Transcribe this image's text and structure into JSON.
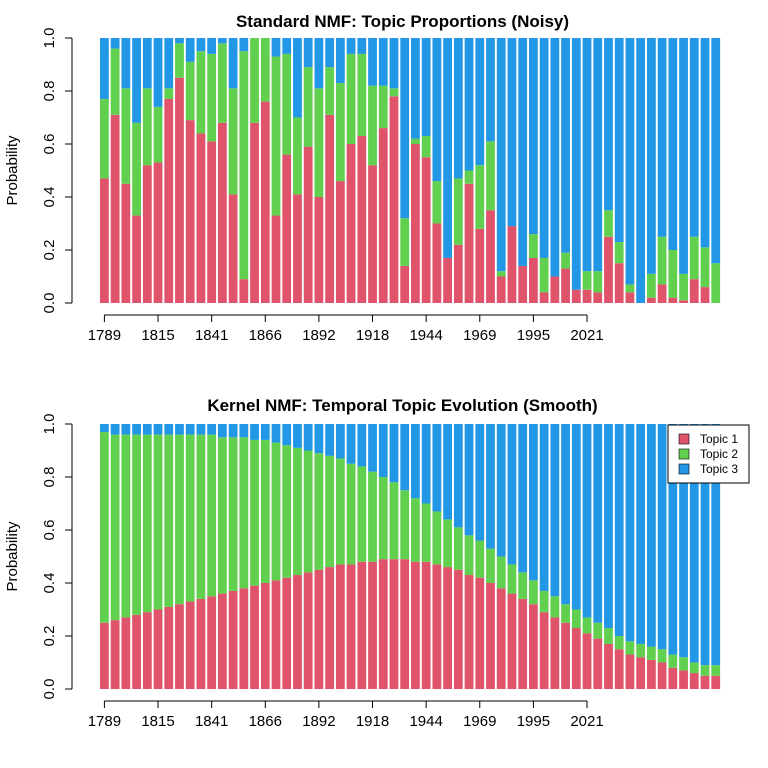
{
  "chart_data": [
    {
      "type": "bar",
      "stacked": true,
      "title": "Standard NMF: Topic Proportions (Noisy)",
      "ylabel": "Probability",
      "ylim": [
        0,
        1
      ],
      "yticks": [
        "0.0",
        "0.2",
        "0.4",
        "0.6",
        "0.8",
        "1.0"
      ],
      "xtick_labels": [
        "1789",
        "1815",
        "1841",
        "1866",
        "1892",
        "1918",
        "1944",
        "1969",
        "1995",
        "2021"
      ],
      "xtick_bar_index": [
        0,
        5,
        10,
        15,
        20,
        25,
        30,
        35,
        40,
        45
      ],
      "colors": [
        "#DF536B",
        "#61D04F",
        "#2297E6"
      ],
      "series": [
        {
          "values": [
            0.47,
            0.71,
            0.45,
            0.33,
            0.52,
            0.53,
            0.77,
            0.85,
            0.69,
            0.64,
            0.61,
            0.68,
            0.41,
            0.09,
            0.68,
            0.76,
            0.33,
            0.56,
            0.41,
            0.59,
            0.4,
            0.71,
            0.46,
            0.6,
            0.63,
            0.52,
            0.66,
            0.78,
            0.14,
            0.6,
            0.55,
            0.3,
            0.17,
            0.22,
            0.45,
            0.28,
            0.35,
            0.1,
            0.29,
            0.14,
            0.17,
            0.04,
            0.1,
            0.13,
            0.05,
            0.05,
            0.04,
            0.25,
            0.15,
            0.04,
            0.0,
            0.02,
            0.07,
            0.02,
            0.01,
            0.09,
            0.06,
            0.0
          ]
        },
        {
          "values": [
            0.3,
            0.25,
            0.36,
            0.35,
            0.29,
            0.21,
            0.04,
            0.13,
            0.22,
            0.31,
            0.33,
            0.3,
            0.4,
            0.86,
            0.32,
            0.24,
            0.6,
            0.38,
            0.29,
            0.3,
            0.41,
            0.18,
            0.37,
            0.34,
            0.31,
            0.3,
            0.16,
            0.03,
            0.18,
            0.02,
            0.08,
            0.16,
            0.0,
            0.25,
            0.05,
            0.24,
            0.26,
            0.02,
            0.0,
            0.0,
            0.09,
            0.13,
            0.0,
            0.06,
            0.0,
            0.07,
            0.08,
            0.1,
            0.08,
            0.03,
            0.0,
            0.09,
            0.18,
            0.18,
            0.1,
            0.16,
            0.15,
            0.15
          ]
        },
        {
          "values": [
            0.23,
            0.04,
            0.19,
            0.32,
            0.19,
            0.26,
            0.19,
            0.02,
            0.09,
            0.05,
            0.06,
            0.02,
            0.19,
            0.05,
            0.0,
            0.0,
            0.07,
            0.06,
            0.3,
            0.11,
            0.19,
            0.11,
            0.17,
            0.06,
            0.06,
            0.18,
            0.18,
            0.19,
            0.68,
            0.38,
            0.37,
            0.54,
            0.83,
            0.53,
            0.5,
            0.48,
            0.39,
            0.88,
            0.71,
            0.86,
            0.74,
            0.83,
            0.9,
            0.81,
            0.95,
            0.88,
            0.88,
            0.65,
            0.77,
            0.93,
            1.0,
            0.89,
            0.75,
            0.8,
            0.89,
            0.75,
            0.79,
            0.85
          ]
        }
      ]
    },
    {
      "type": "bar",
      "stacked": true,
      "title": "Kernel NMF: Temporal Topic Evolution (Smooth)",
      "ylabel": "Probability",
      "ylim": [
        0,
        1
      ],
      "yticks": [
        "0.0",
        "0.2",
        "0.4",
        "0.6",
        "0.8",
        "1.0"
      ],
      "xtick_labels": [
        "1789",
        "1815",
        "1841",
        "1866",
        "1892",
        "1918",
        "1944",
        "1969",
        "1995",
        "2021"
      ],
      "xtick_bar_index": [
        0,
        5,
        10,
        15,
        20,
        25,
        30,
        35,
        40,
        45
      ],
      "colors": [
        "#DF536B",
        "#61D04F",
        "#2297E6"
      ],
      "legend": {
        "position": "top-right",
        "labels": [
          "Topic 1",
          "Topic 2",
          "Topic 3"
        ]
      },
      "series": [
        {
          "name": "Topic 1",
          "values": [
            0.25,
            0.26,
            0.27,
            0.28,
            0.29,
            0.3,
            0.31,
            0.32,
            0.33,
            0.34,
            0.35,
            0.36,
            0.37,
            0.38,
            0.39,
            0.4,
            0.41,
            0.42,
            0.43,
            0.44,
            0.45,
            0.46,
            0.47,
            0.47,
            0.48,
            0.48,
            0.49,
            0.49,
            0.49,
            0.48,
            0.48,
            0.47,
            0.46,
            0.45,
            0.43,
            0.42,
            0.4,
            0.38,
            0.36,
            0.34,
            0.32,
            0.29,
            0.27,
            0.25,
            0.23,
            0.21,
            0.19,
            0.17,
            0.15,
            0.13,
            0.12,
            0.11,
            0.1,
            0.08,
            0.07,
            0.06,
            0.05,
            0.05
          ]
        },
        {
          "name": "Topic 2",
          "values": [
            0.72,
            0.7,
            0.69,
            0.68,
            0.67,
            0.66,
            0.65,
            0.64,
            0.63,
            0.62,
            0.61,
            0.59,
            0.58,
            0.57,
            0.55,
            0.54,
            0.52,
            0.5,
            0.48,
            0.46,
            0.44,
            0.42,
            0.4,
            0.38,
            0.36,
            0.34,
            0.31,
            0.29,
            0.26,
            0.24,
            0.22,
            0.2,
            0.18,
            0.16,
            0.15,
            0.14,
            0.13,
            0.12,
            0.11,
            0.1,
            0.09,
            0.08,
            0.08,
            0.07,
            0.07,
            0.06,
            0.06,
            0.06,
            0.05,
            0.05,
            0.05,
            0.05,
            0.05,
            0.05,
            0.05,
            0.04,
            0.04,
            0.04
          ]
        },
        {
          "name": "Topic 3",
          "values": [
            0.03,
            0.04,
            0.04,
            0.04,
            0.04,
            0.04,
            0.04,
            0.04,
            0.04,
            0.04,
            0.04,
            0.05,
            0.05,
            0.05,
            0.06,
            0.06,
            0.07,
            0.08,
            0.09,
            0.1,
            0.11,
            0.12,
            0.13,
            0.15,
            0.16,
            0.18,
            0.2,
            0.22,
            0.25,
            0.28,
            0.3,
            0.33,
            0.36,
            0.39,
            0.42,
            0.44,
            0.47,
            0.5,
            0.53,
            0.56,
            0.59,
            0.63,
            0.65,
            0.68,
            0.7,
            0.73,
            0.75,
            0.77,
            0.8,
            0.82,
            0.83,
            0.84,
            0.85,
            0.87,
            0.88,
            0.9,
            0.91,
            0.91
          ]
        }
      ]
    }
  ]
}
